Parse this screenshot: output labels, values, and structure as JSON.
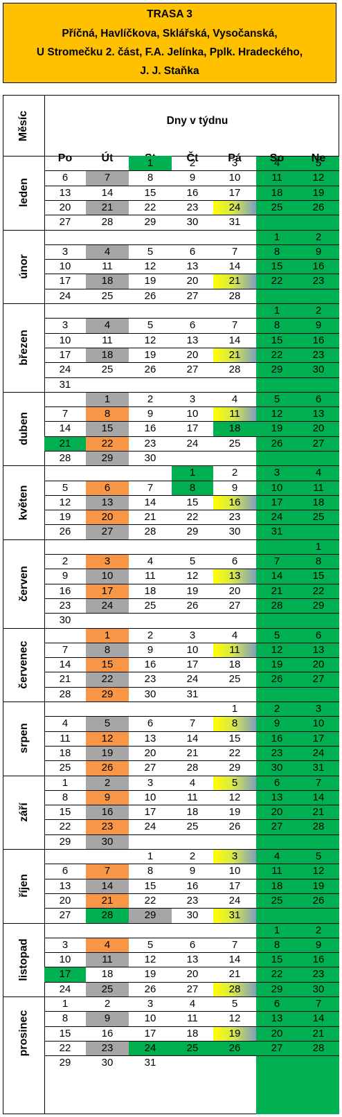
{
  "header": {
    "lines": [
      "TRASA 3",
      "Příčná, Havlíčkova, Sklářská, Vysočanská,",
      "U Stromečku 2. část, F.A. Jelínka, Pplk. Hradeckého,",
      "J. J. Staňka"
    ]
  },
  "table": {
    "month_header": "Měsíc",
    "days_header": "Dny v týdnu",
    "weekdays": [
      "Po",
      "Út",
      "St",
      "Čt",
      "Pá",
      "So",
      "Ne"
    ],
    "colors": {
      "header_bg": "#ffc000",
      "weekend": "#00b050",
      "gray": "#a6a6a6",
      "orange": "#f79646",
      "green": "#00b050",
      "yellow": "#ffff00",
      "blue": "#7f9fbf"
    },
    "months": [
      {
        "name": "leden",
        "weeks": [
          [
            null,
            null,
            1,
            2,
            3,
            4,
            5
          ],
          [
            6,
            7,
            8,
            9,
            10,
            11,
            12
          ],
          [
            13,
            14,
            15,
            16,
            17,
            18,
            19
          ],
          [
            20,
            21,
            22,
            23,
            24,
            25,
            26
          ],
          [
            27,
            28,
            29,
            30,
            31,
            null,
            null
          ]
        ],
        "marks": {
          "1": "green",
          "7": "gray",
          "21": "gray",
          "24": "yg"
        }
      },
      {
        "name": "únor",
        "weeks": [
          [
            null,
            null,
            null,
            null,
            null,
            1,
            2
          ],
          [
            3,
            4,
            5,
            6,
            7,
            8,
            9
          ],
          [
            10,
            11,
            12,
            13,
            14,
            15,
            16
          ],
          [
            17,
            18,
            19,
            20,
            21,
            22,
            23
          ],
          [
            24,
            25,
            26,
            27,
            28,
            null,
            null
          ]
        ],
        "marks": {
          "4": "gray",
          "18": "gray",
          "21": "yg"
        }
      },
      {
        "name": "březen",
        "weeks": [
          [
            null,
            null,
            null,
            null,
            null,
            1,
            2
          ],
          [
            3,
            4,
            5,
            6,
            7,
            8,
            9
          ],
          [
            10,
            11,
            12,
            13,
            14,
            15,
            16
          ],
          [
            17,
            18,
            19,
            20,
            21,
            22,
            23
          ],
          [
            24,
            25,
            26,
            27,
            28,
            29,
            30
          ],
          [
            31,
            null,
            null,
            null,
            null,
            null,
            null
          ]
        ],
        "marks": {
          "4": "gray",
          "18": "gray",
          "21": "yg"
        }
      },
      {
        "name": "duben",
        "weeks": [
          [
            null,
            1,
            2,
            3,
            4,
            5,
            6
          ],
          [
            7,
            8,
            9,
            10,
            11,
            12,
            13
          ],
          [
            14,
            15,
            16,
            17,
            18,
            19,
            20
          ],
          [
            21,
            22,
            23,
            24,
            25,
            26,
            27
          ],
          [
            28,
            29,
            30,
            null,
            null,
            null,
            null
          ]
        ],
        "marks": {
          "1": "gray",
          "8": "orange",
          "11": "yg",
          "15": "gray",
          "18": "green",
          "21": "green",
          "22": "orange",
          "29": "gray"
        }
      },
      {
        "name": "květen",
        "weeks": [
          [
            null,
            null,
            null,
            1,
            2,
            3,
            4
          ],
          [
            5,
            6,
            7,
            8,
            9,
            10,
            11
          ],
          [
            12,
            13,
            14,
            15,
            16,
            17,
            18
          ],
          [
            19,
            20,
            21,
            22,
            23,
            24,
            25
          ],
          [
            26,
            27,
            28,
            29,
            30,
            31,
            null
          ]
        ],
        "marks": {
          "1": "green",
          "6": "orange",
          "8": "green",
          "13": "gray",
          "16": "yg",
          "20": "orange",
          "27": "gray"
        }
      },
      {
        "name": "červen",
        "weeks": [
          [
            null,
            null,
            null,
            null,
            null,
            null,
            1
          ],
          [
            2,
            3,
            4,
            5,
            6,
            7,
            8
          ],
          [
            9,
            10,
            11,
            12,
            13,
            14,
            15
          ],
          [
            16,
            17,
            18,
            19,
            20,
            21,
            22
          ],
          [
            23,
            24,
            25,
            26,
            27,
            28,
            29
          ],
          [
            30,
            null,
            null,
            null,
            null,
            null,
            null
          ]
        ],
        "marks": {
          "3": "orange",
          "10": "gray",
          "13": "yg",
          "17": "orange",
          "24": "gray"
        }
      },
      {
        "name": "červenec",
        "weeks": [
          [
            null,
            1,
            2,
            3,
            4,
            5,
            6
          ],
          [
            7,
            8,
            9,
            10,
            11,
            12,
            13
          ],
          [
            14,
            15,
            16,
            17,
            18,
            19,
            20
          ],
          [
            21,
            22,
            23,
            24,
            25,
            26,
            27
          ],
          [
            28,
            29,
            30,
            31,
            null,
            null,
            null
          ]
        ],
        "marks": {
          "1": "orange",
          "8": "gray",
          "11": "yg",
          "15": "orange",
          "22": "gray",
          "29": "orange"
        }
      },
      {
        "name": "srpen",
        "weeks": [
          [
            null,
            null,
            null,
            null,
            1,
            2,
            3
          ],
          [
            4,
            5,
            6,
            7,
            8,
            9,
            10
          ],
          [
            11,
            12,
            13,
            14,
            15,
            16,
            17
          ],
          [
            18,
            19,
            20,
            21,
            22,
            23,
            24
          ],
          [
            25,
            26,
            27,
            28,
            29,
            30,
            31
          ]
        ],
        "marks": {
          "5": "gray",
          "8": "yg",
          "12": "orange",
          "19": "gray",
          "26": "orange"
        }
      },
      {
        "name": "září",
        "weeks": [
          [
            1,
            2,
            3,
            4,
            5,
            6,
            7
          ],
          [
            8,
            9,
            10,
            11,
            12,
            13,
            14
          ],
          [
            15,
            16,
            17,
            18,
            19,
            20,
            21
          ],
          [
            22,
            23,
            24,
            25,
            26,
            27,
            28
          ],
          [
            29,
            30,
            null,
            null,
            null,
            null,
            null
          ]
        ],
        "marks": {
          "2": "gray",
          "5": "yg",
          "9": "orange",
          "16": "gray",
          "23": "orange",
          "30": "gray"
        }
      },
      {
        "name": "říjen",
        "weeks": [
          [
            null,
            null,
            1,
            2,
            3,
            4,
            5
          ],
          [
            6,
            7,
            8,
            9,
            10,
            11,
            12
          ],
          [
            13,
            14,
            15,
            16,
            17,
            18,
            19
          ],
          [
            20,
            21,
            22,
            23,
            24,
            25,
            26
          ],
          [
            27,
            28,
            29,
            30,
            31,
            null,
            null
          ]
        ],
        "marks": {
          "3": "yg",
          "7": "orange",
          "14": "gray",
          "21": "orange",
          "28": "green",
          "29": "gray",
          "31": "yg"
        }
      },
      {
        "name": "listopad",
        "weeks": [
          [
            null,
            null,
            null,
            null,
            null,
            1,
            2
          ],
          [
            3,
            4,
            5,
            6,
            7,
            8,
            9
          ],
          [
            10,
            11,
            12,
            13,
            14,
            15,
            16
          ],
          [
            17,
            18,
            19,
            20,
            21,
            22,
            23
          ],
          [
            24,
            25,
            26,
            27,
            28,
            29,
            30
          ]
        ],
        "marks": {
          "4": "orange",
          "11": "gray",
          "17": "green",
          "25": "gray",
          "28": "yg"
        }
      },
      {
        "name": "prosinec",
        "weeks": [
          [
            1,
            2,
            3,
            4,
            5,
            6,
            7
          ],
          [
            8,
            9,
            10,
            11,
            12,
            13,
            14
          ],
          [
            15,
            16,
            17,
            18,
            19,
            20,
            21
          ],
          [
            22,
            23,
            24,
            25,
            26,
            27,
            28
          ],
          [
            29,
            30,
            31,
            null,
            null,
            null,
            null
          ]
        ],
        "marks": {
          "9": "gray",
          "19": "yg",
          "23": "gray",
          "24": "green",
          "25": "green",
          "26": "green"
        }
      }
    ]
  }
}
